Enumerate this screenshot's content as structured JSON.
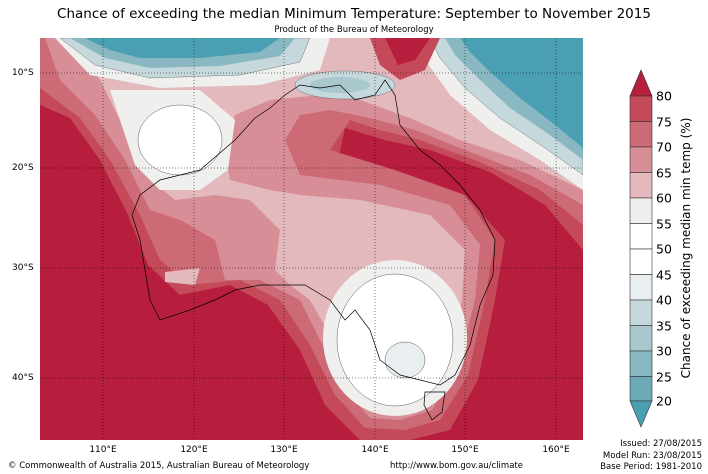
{
  "title": "Chance of exceeding the median Minimum Temperature: September to November 2015",
  "subtitle": "Product of the Bureau of Meteorology",
  "map": {
    "lat_labels": [
      "10°S",
      "20°S",
      "30°S",
      "40°S"
    ],
    "lon_labels": [
      "110°E",
      "120°E",
      "130°E",
      "140°E",
      "150°E",
      "160°E"
    ]
  },
  "colorbar": {
    "label": "Chance of exceeding median min temp (%)",
    "ticks": [
      "80",
      "75",
      "70",
      "65",
      "60",
      "55",
      "50",
      "45",
      "40",
      "35",
      "30",
      "25",
      "20"
    ],
    "colors": {
      "above_80": "#b71e3d",
      "75-80": "#c44a5a",
      "70-75": "#cc6a75",
      "65-70": "#d88e96",
      "60-65": "#e4b9bd",
      "55-60": "#efefed",
      "50-55": "#ffffff",
      "45-50": "#ffffff",
      "40-45": "#e9eff1",
      "35-40": "#c5d9dd",
      "30-35": "#a8c8ce",
      "25-30": "#8ab8c2",
      "20-25": "#6aa9b6",
      "below_20": "#4aa0b2"
    }
  },
  "footer": {
    "copyright": "© Commonwealth of Australia 2015, Australian Bureau of Meteorology",
    "url": "http://www.bom.gov.au/climate",
    "issued": "Issued: 27/08/2015",
    "model_run": "Model Run: 23/08/2015",
    "base_period": "Base Period: 1981-2010"
  }
}
